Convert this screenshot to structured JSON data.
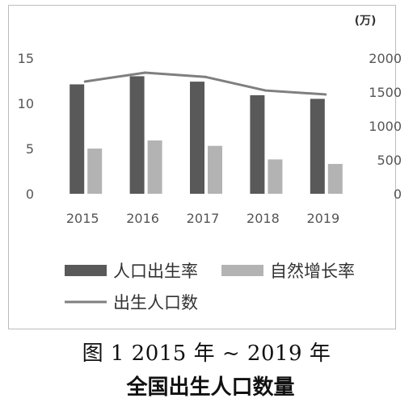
{
  "caption": {
    "line1": "图 1    2015 年 ~ 2019 年",
    "line2": "全国出生人口数量"
  },
  "chart_data": {
    "type": "bar",
    "categories": [
      "2015",
      "2016",
      "2017",
      "2018",
      "2019"
    ],
    "series": [
      {
        "name": "人口出生率",
        "type": "bar",
        "axis": "left",
        "color": "#595959",
        "values": [
          12.1,
          13.0,
          12.4,
          10.9,
          10.5
        ]
      },
      {
        "name": "自然增长率",
        "type": "bar",
        "axis": "left",
        "color": "#b3b3b3",
        "values": [
          5.0,
          5.9,
          5.3,
          3.8,
          3.3
        ]
      },
      {
        "name": "出生人口数",
        "type": "line",
        "axis": "right",
        "color": "#7f7f7f",
        "values": [
          1655,
          1786,
          1723,
          1523,
          1465
        ]
      }
    ],
    "y_left": {
      "ylim": [
        0,
        15
      ],
      "ticks": [
        "0",
        "5",
        "10",
        "15"
      ]
    },
    "y_right": {
      "ylim": [
        0,
        2000
      ],
      "ticks": [
        "0",
        "500",
        "1000",
        "1500",
        "2000"
      ],
      "unit": "(万)"
    },
    "grid": false,
    "legend": {
      "placement": "bottom"
    }
  }
}
